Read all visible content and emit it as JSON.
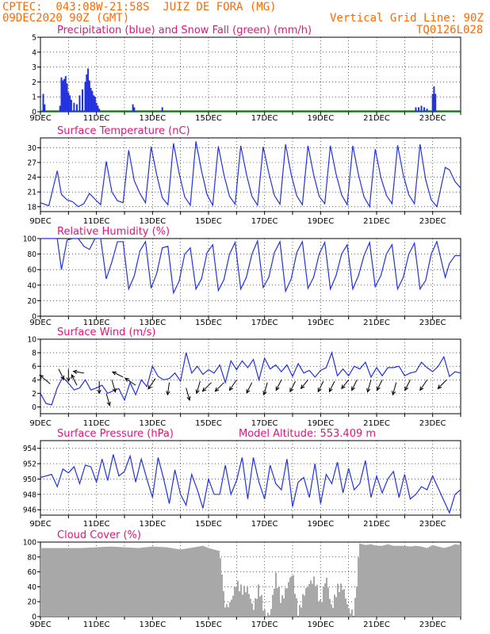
{
  "header": {
    "line1": "CPTEC:  043:08W-21:58S  JUIZ DE FORA (MG)",
    "line2": "09DEC2020 90Z (GMT)",
    "vgrid": "Vertical Grid Line: 90Z",
    "code": "TQ0126L028"
  },
  "colors": {
    "header": "#ff6a00",
    "title": "#e0157c",
    "line": "#2233dd",
    "snow": "#00aa00",
    "cloud": "#a8a8a8"
  },
  "x_ticks": [
    "9DEC",
    "11DEC",
    "13DEC",
    "15DEC",
    "17DEC",
    "19DEC",
    "21DEC",
    "23DEC"
  ],
  "chart_data": [
    {
      "type": "bar",
      "title": "Precipitation (blue) and Snow Fall (green) (mm/h)",
      "ylim": [
        0,
        5
      ],
      "yticks": [
        0,
        1,
        2,
        3,
        4,
        5
      ],
      "x_unit": "days after 09DEC 00Z",
      "series": [
        {
          "name": "Precipitation",
          "points": [
            [
              0.1,
              1.2
            ],
            [
              0.15,
              0.5
            ],
            [
              0.7,
              0.4
            ],
            [
              0.75,
              2.3
            ],
            [
              0.8,
              2.1
            ],
            [
              0.85,
              2.2
            ],
            [
              0.9,
              2.4
            ],
            [
              0.95,
              1.9
            ],
            [
              1.0,
              1.3
            ],
            [
              1.05,
              1.1
            ],
            [
              1.1,
              0.8
            ],
            [
              1.2,
              0.6
            ],
            [
              1.3,
              0.5
            ],
            [
              1.4,
              1.1
            ],
            [
              1.5,
              1.5
            ],
            [
              1.6,
              2.0
            ],
            [
              1.65,
              2.5
            ],
            [
              1.7,
              2.9
            ],
            [
              1.75,
              2.1
            ],
            [
              1.8,
              1.6
            ],
            [
              1.85,
              1.4
            ],
            [
              1.9,
              1.1
            ],
            [
              1.95,
              1.0
            ],
            [
              2.0,
              0.6
            ],
            [
              2.05,
              0.4
            ],
            [
              2.1,
              0.2
            ],
            [
              3.3,
              0.5
            ],
            [
              3.35,
              0.3
            ],
            [
              4.35,
              0.3
            ],
            [
              13.4,
              0.3
            ],
            [
              13.5,
              0.3
            ],
            [
              13.6,
              0.4
            ],
            [
              13.7,
              0.3
            ],
            [
              13.8,
              0.2
            ],
            [
              14.0,
              1.2
            ],
            [
              14.05,
              1.7
            ],
            [
              14.1,
              1.2
            ]
          ]
        },
        {
          "name": "Snow Fall",
          "points": []
        }
      ]
    },
    {
      "type": "line",
      "title": "Surface Temperature (nC)",
      "ylim": [
        17,
        32
      ],
      "yticks": [
        18,
        21,
        24,
        27,
        30
      ],
      "x": [
        0,
        0.3,
        0.6,
        0.75,
        0.95,
        1.15,
        1.35,
        1.55,
        1.75,
        1.95,
        2.15,
        2.35,
        2.55,
        2.75,
        2.95,
        3.15,
        3.35,
        3.55,
        3.75,
        3.95,
        4.15,
        4.35,
        4.55,
        4.75,
        4.95,
        5.15,
        5.35,
        5.55,
        5.75,
        5.95,
        6.15,
        6.35,
        6.55,
        6.75,
        6.95,
        7.15,
        7.35,
        7.55,
        7.75,
        7.95,
        8.15,
        8.35,
        8.55,
        8.75,
        8.95,
        9.15,
        9.35,
        9.55,
        9.75,
        9.95,
        10.15,
        10.35,
        10.55,
        10.75,
        10.95,
        11.15,
        11.35,
        11.55,
        11.75,
        11.95,
        12.15,
        12.35,
        12.55,
        12.75,
        12.95,
        13.15,
        13.35,
        13.55,
        13.75,
        13.95,
        14.15,
        14.45,
        14.6,
        14.8,
        15.0
      ],
      "values": [
        18.8,
        18.2,
        25.3,
        20.5,
        19.4,
        19.0,
        18.0,
        18.6,
        20.7,
        19.5,
        18.4,
        27.2,
        21.0,
        19.2,
        18.8,
        29.5,
        23.3,
        20.7,
        18.8,
        30.2,
        24.5,
        19.8,
        18.4,
        30.9,
        24.8,
        20.0,
        18.3,
        31.3,
        25.3,
        20.4,
        18.3,
        30.3,
        24.5,
        20.1,
        18.5,
        30.4,
        24.7,
        20.1,
        18.3,
        30.2,
        24.9,
        20.3,
        18.5,
        30.7,
        24.6,
        20.2,
        18.4,
        30.4,
        24.6,
        20.1,
        18.6,
        30.4,
        24.7,
        20.4,
        18.4,
        30.4,
        24.6,
        20.0,
        18.0,
        29.7,
        24.0,
        20.3,
        18.6,
        30.5,
        24.5,
        20.4,
        18.6,
        30.7,
        23.5,
        19.4,
        18.0,
        26.0,
        25.5,
        23.1,
        21.8
      ]
    },
    {
      "type": "line",
      "title": "Relative Humidity (%)",
      "ylim": [
        0,
        100
      ],
      "yticks": [
        0,
        20,
        40,
        60,
        80,
        100
      ],
      "x": [
        0,
        0.3,
        0.6,
        0.75,
        0.95,
        1.15,
        1.35,
        1.55,
        1.75,
        1.95,
        2.15,
        2.35,
        2.55,
        2.75,
        2.95,
        3.15,
        3.35,
        3.55,
        3.75,
        3.95,
        4.15,
        4.35,
        4.55,
        4.75,
        4.95,
        5.15,
        5.35,
        5.55,
        5.75,
        5.95,
        6.15,
        6.35,
        6.55,
        6.75,
        6.95,
        7.15,
        7.35,
        7.55,
        7.75,
        7.95,
        8.15,
        8.35,
        8.55,
        8.75,
        8.95,
        9.15,
        9.35,
        9.55,
        9.75,
        9.95,
        10.15,
        10.35,
        10.55,
        10.75,
        10.95,
        11.15,
        11.35,
        11.55,
        11.75,
        11.95,
        12.15,
        12.35,
        12.55,
        12.75,
        12.95,
        13.15,
        13.35,
        13.55,
        13.75,
        13.95,
        14.15,
        14.45,
        14.6,
        14.8,
        15.0
      ],
      "values": [
        100,
        100,
        100,
        60,
        98,
        100,
        100,
        90,
        86,
        100,
        100,
        48,
        70,
        96,
        96,
        35,
        52,
        84,
        96,
        36,
        55,
        88,
        90,
        30,
        45,
        80,
        88,
        35,
        48,
        82,
        92,
        33,
        47,
        80,
        95,
        35,
        50,
        80,
        97,
        37,
        50,
        82,
        96,
        32,
        48,
        82,
        96,
        36,
        50,
        80,
        95,
        35,
        52,
        80,
        92,
        35,
        52,
        78,
        95,
        38,
        52,
        80,
        92,
        35,
        50,
        80,
        94,
        35,
        46,
        80,
        96,
        50,
        68,
        78,
        78
      ]
    },
    {
      "type": "line",
      "title": "Surface Wind (m/s)",
      "ylim": [
        -1,
        10
      ],
      "yticks": [
        0,
        2,
        4,
        6,
        8,
        10
      ],
      "x": [
        0,
        0.2,
        0.4,
        0.6,
        0.8,
        1.0,
        1.2,
        1.4,
        1.6,
        1.8,
        2.0,
        2.2,
        2.4,
        2.6,
        2.8,
        3.0,
        3.2,
        3.4,
        3.6,
        3.8,
        4.0,
        4.2,
        4.4,
        4.6,
        4.8,
        5.0,
        5.2,
        5.4,
        5.6,
        5.8,
        6.0,
        6.2,
        6.4,
        6.6,
        6.8,
        7.0,
        7.2,
        7.4,
        7.6,
        7.8,
        8.0,
        8.2,
        8.4,
        8.6,
        8.8,
        9.0,
        9.2,
        9.4,
        9.6,
        9.8,
        10.0,
        10.2,
        10.4,
        10.6,
        10.8,
        11.0,
        11.2,
        11.4,
        11.6,
        11.8,
        12.0,
        12.2,
        12.4,
        12.6,
        12.8,
        13.0,
        13.2,
        13.4,
        13.6,
        13.8,
        14.0,
        14.2,
        14.4,
        14.6,
        14.8,
        15.0
      ],
      "values": [
        2.0,
        0.5,
        0.3,
        2.8,
        4.4,
        3.5,
        2.5,
        2.8,
        4.0,
        2.5,
        2.8,
        3.2,
        2.0,
        2.4,
        2.7,
        1.0,
        3.6,
        1.8,
        4.0,
        3.0,
        6.0,
        4.5,
        4.0,
        4.2,
        5.0,
        3.8,
        8.0,
        5.0,
        6.0,
        4.8,
        5.5,
        5.0,
        6.2,
        3.6,
        6.8,
        5.5,
        6.8,
        5.8,
        7.0,
        4.0,
        7.2,
        5.6,
        6.2,
        5.2,
        6.2,
        4.5,
        6.4,
        5.0,
        5.4,
        4.4,
        5.4,
        5.8,
        8.0,
        4.6,
        5.6,
        4.6,
        6.0,
        5.6,
        6.6,
        4.4,
        5.8,
        4.6,
        5.8,
        5.8,
        6.0,
        4.6,
        5.0,
        5.2,
        6.6,
        5.8,
        5.2,
        6.0,
        7.4,
        4.5,
        5.2,
        5.0
      ]
    },
    {
      "type": "line",
      "title": "Surface Pressure (hPa)",
      "annotation": "Model Altitude: 553.409 m",
      "ylim": [
        945.3,
        955
      ],
      "yticks": [
        946,
        948,
        950,
        952,
        954
      ],
      "x": [
        0,
        0.2,
        0.4,
        0.6,
        0.8,
        1.0,
        1.2,
        1.4,
        1.6,
        1.8,
        2.0,
        2.2,
        2.4,
        2.6,
        2.8,
        3.0,
        3.2,
        3.4,
        3.6,
        3.8,
        4.0,
        4.2,
        4.4,
        4.6,
        4.8,
        5.0,
        5.2,
        5.4,
        5.6,
        5.8,
        6.0,
        6.2,
        6.4,
        6.6,
        6.8,
        7.0,
        7.2,
        7.4,
        7.6,
        7.8,
        8.0,
        8.2,
        8.4,
        8.6,
        8.8,
        9.0,
        9.2,
        9.4,
        9.6,
        9.8,
        10.0,
        10.2,
        10.4,
        10.6,
        10.8,
        11.0,
        11.2,
        11.4,
        11.6,
        11.8,
        12.0,
        12.2,
        12.4,
        12.6,
        12.8,
        13.0,
        13.2,
        13.4,
        13.6,
        13.8,
        14.0,
        14.2,
        14.4,
        14.6,
        14.8,
        15.0
      ],
      "values": [
        950.2,
        950.4,
        950.6,
        949.0,
        951.3,
        950.8,
        951.6,
        949.4,
        951.8,
        951.6,
        949.6,
        952.6,
        949.8,
        953.2,
        950.4,
        951.0,
        953.0,
        949.6,
        952.6,
        950.0,
        947.6,
        952.8,
        950.0,
        946.8,
        951.2,
        948.0,
        946.6,
        950.6,
        948.6,
        946.2,
        950.0,
        948.0,
        948.0,
        951.8,
        948.0,
        949.8,
        952.8,
        947.4,
        952.8,
        949.6,
        947.4,
        951.8,
        949.4,
        948.6,
        952.6,
        946.4,
        949.6,
        950.2,
        947.6,
        952.0,
        946.8,
        950.6,
        949.4,
        952.2,
        948.2,
        951.4,
        948.6,
        949.4,
        952.4,
        947.6,
        950.4,
        948.2,
        950.0,
        951.0,
        947.6,
        950.6,
        947.4,
        948.0,
        949.0,
        948.6,
        950.4,
        948.8,
        947.2,
        945.6,
        948.0,
        948.6
      ]
    },
    {
      "type": "area",
      "title": "Cloud Cover (%)",
      "ylim": [
        0,
        100
      ],
      "yticks": [
        0,
        20,
        40,
        60,
        80,
        100
      ],
      "x": [
        0,
        0.5,
        1.0,
        1.5,
        2.0,
        2.5,
        3.0,
        3.5,
        4.0,
        4.5,
        5.0,
        5.5,
        5.8,
        6.0,
        6.2,
        6.4,
        6.6,
        6.8,
        7.0,
        7.2,
        7.4,
        7.6,
        7.8,
        8.0,
        8.2,
        8.4,
        8.6,
        8.8,
        9.0,
        9.2,
        9.4,
        9.6,
        9.8,
        10.0,
        10.2,
        10.4,
        10.6,
        10.8,
        11.0,
        11.2,
        11.4,
        11.6,
        11.8,
        12.0,
        12.2,
        12.4,
        12.6,
        12.8,
        13.0,
        13.2,
        13.4,
        13.6,
        13.8,
        14.0,
        14.2,
        14.4,
        14.6,
        14.8,
        15.0
      ],
      "values": [
        92,
        92,
        92,
        92,
        93,
        94,
        93,
        92,
        94,
        93,
        90,
        93,
        95,
        92,
        90,
        88,
        10,
        20,
        45,
        35,
        38,
        10,
        40,
        5,
        2,
        55,
        20,
        40,
        60,
        2,
        30,
        45,
        50,
        15,
        55,
        10,
        38,
        40,
        10,
        2,
        98,
        96,
        97,
        95,
        95,
        97,
        95,
        95,
        95,
        94,
        95,
        94,
        92,
        96,
        94,
        92,
        94,
        97,
        96
      ]
    }
  ]
}
